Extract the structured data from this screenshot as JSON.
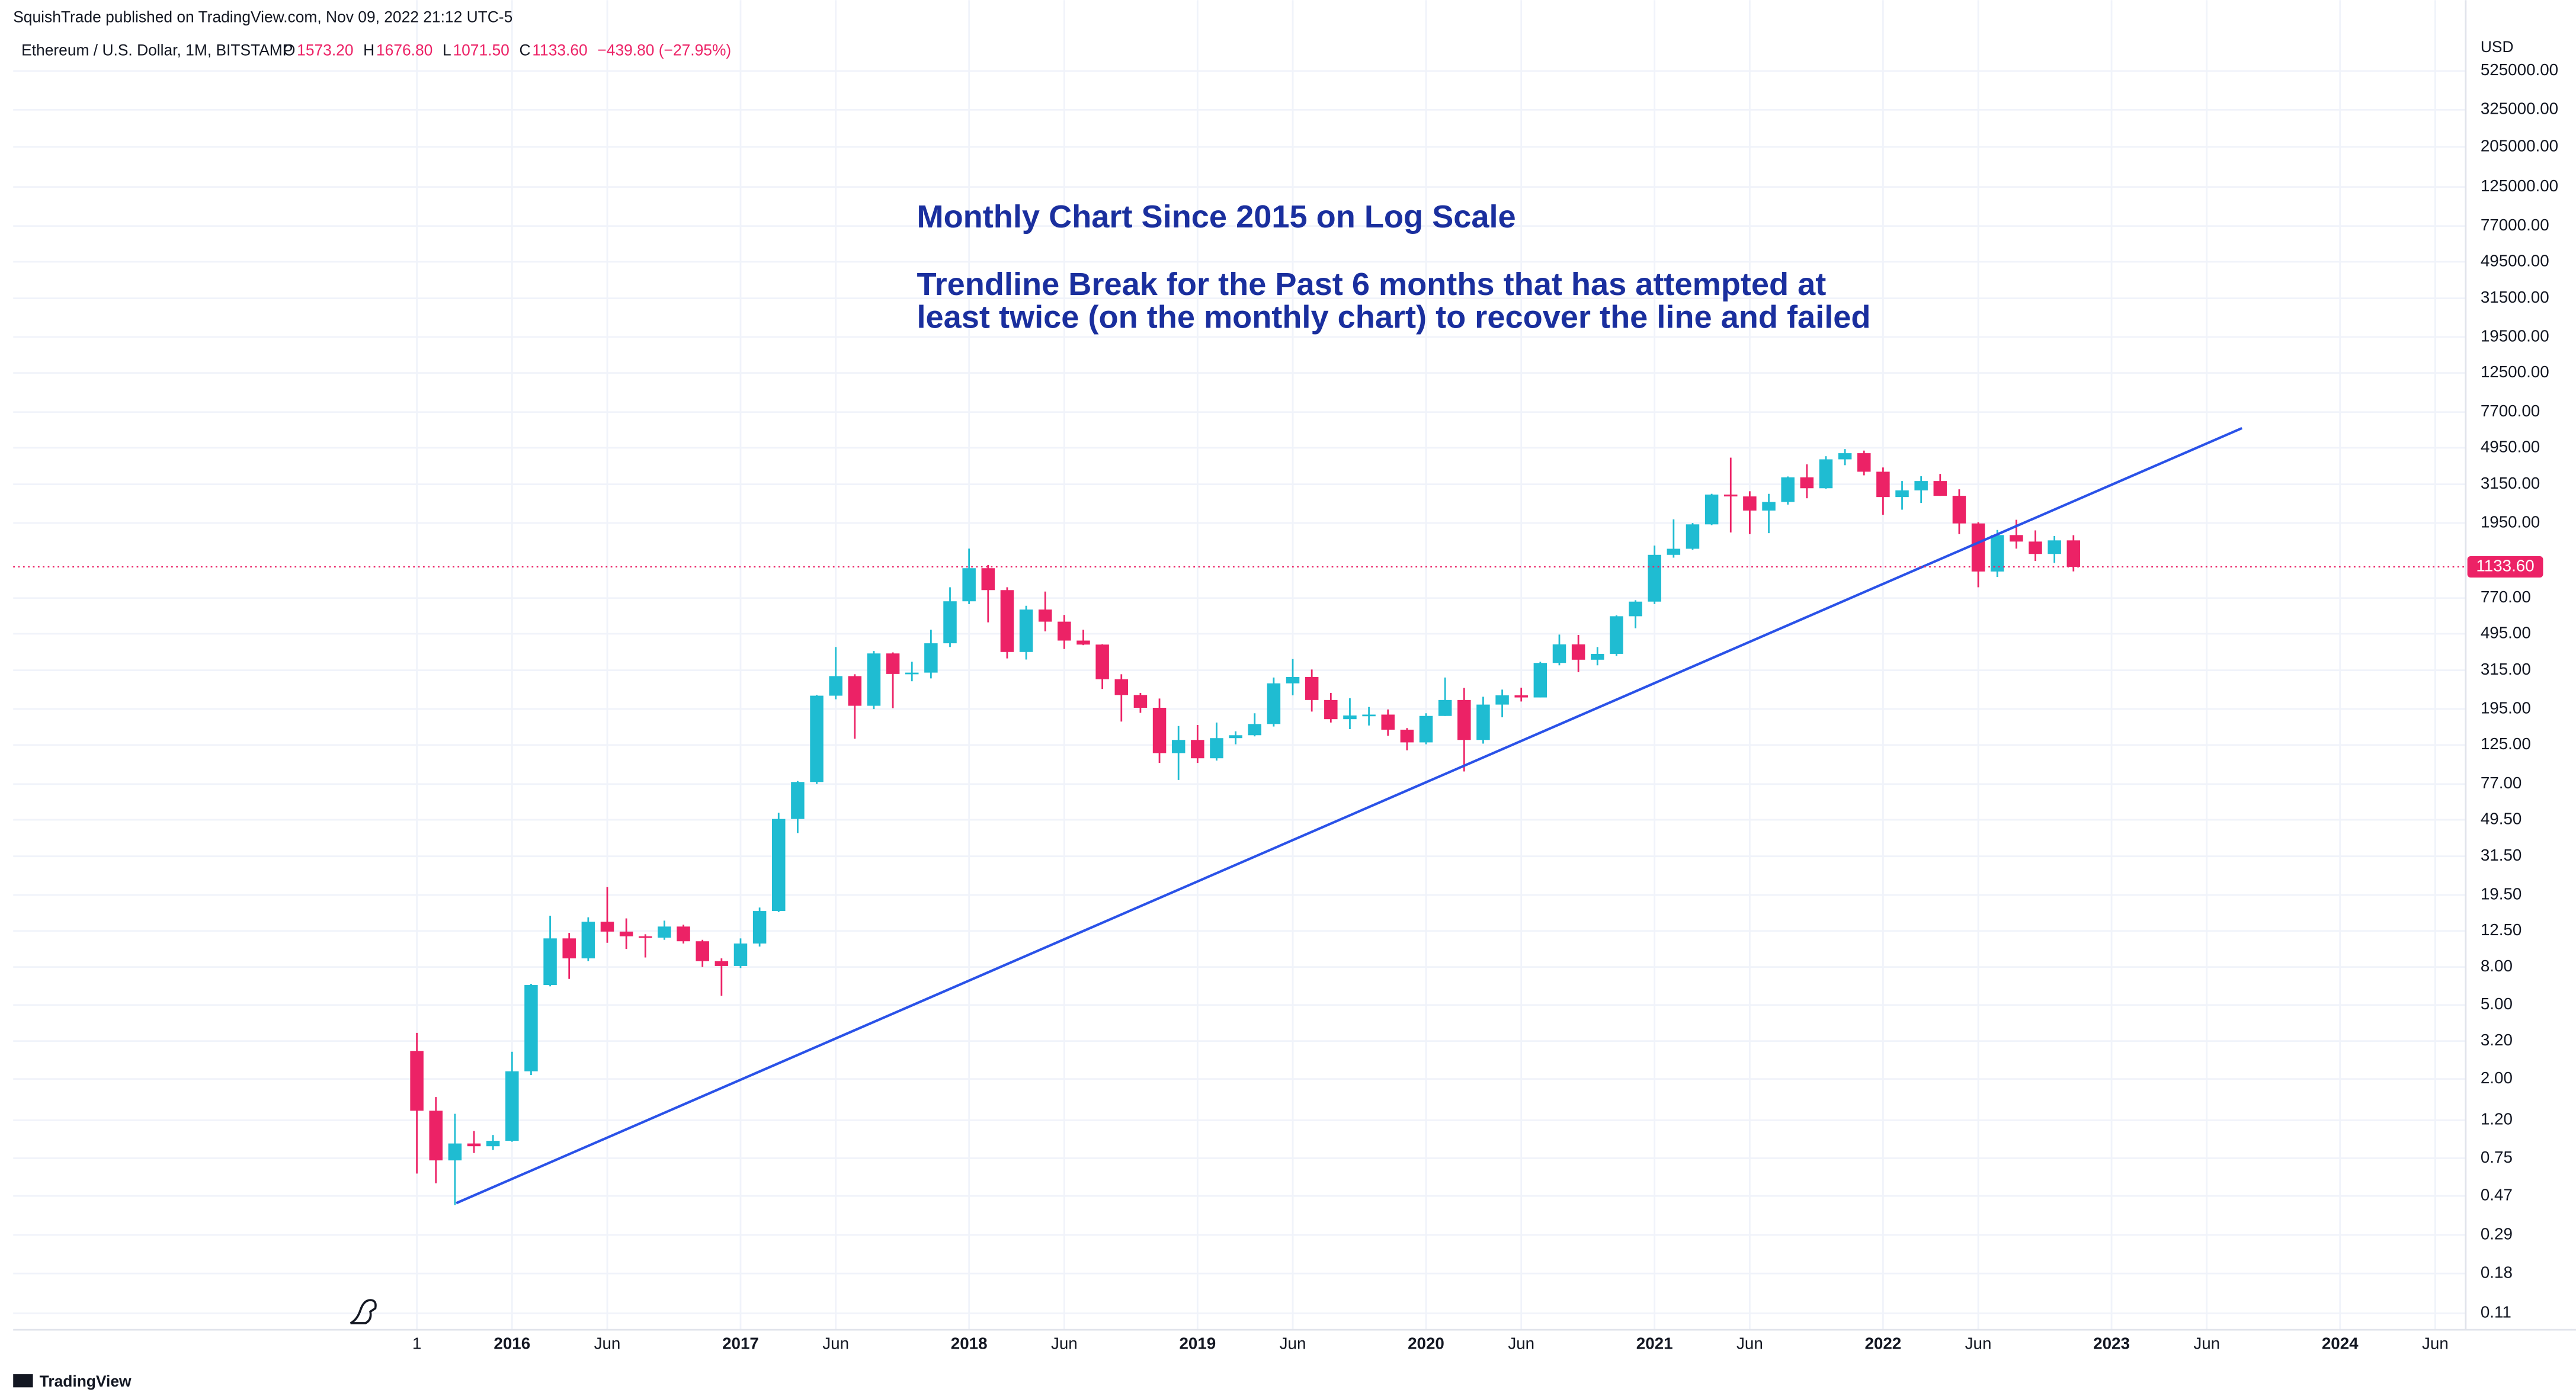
{
  "header": {
    "publisher": "SquishTrade published on TradingView.com, Nov 09, 2022 21:12 UTC-5",
    "footer": "TradingView"
  },
  "chart_data": {
    "type": "candlestick",
    "symbol": "Ethereum / U.S. Dollar, 1M, BITSTAMP",
    "ohlc_legend": [
      {
        "key": "O",
        "value": "1573.20"
      },
      {
        "key": "H",
        "value": "1676.80"
      },
      {
        "key": "L",
        "value": "1071.50"
      },
      {
        "key": "C",
        "value": "1133.60"
      }
    ],
    "change": "−439.80 (−27.95%)",
    "currency": "USD",
    "annotations": [
      "Monthly Chart Since 2015 on Log Scale",
      "Trendline Break for the Past 6 months that has attempted at",
      "least twice (on the monthly chart) to recover the line and failed"
    ],
    "up_color": "#1fbcd2",
    "down_color": "#ec2266",
    "open": [
      2.83,
      1.35,
      0.73,
      0.9,
      0.87,
      0.93,
      2.2,
      6.4,
      11.4,
      8.9,
      14.0,
      12.4,
      11.7,
      11.5,
      13.2,
      11.0,
      8.6,
      8.1,
      10.7,
      16.0,
      50,
      79,
      230,
      293,
      203,
      388,
      301,
      306,
      440,
      740,
      1115,
      850,
      395,
      668,
      575,
      455,
      433,
      282,
      232,
      198,
      113,
      133,
      106,
      136,
      141,
      162,
      268,
      290,
      218,
      172,
      180,
      182,
      151,
      129,
      179,
      218,
      133,
      206,
      231,
      225,
      345,
      434,
      359,
      386,
      615,
      737,
      1315,
      1418,
      1918,
      2773,
      2710,
      2275,
      2530,
      3430,
      3000,
      4290,
      4630,
      3680,
      2690,
      2920,
      3280,
      2730,
      1940,
      1070,
      1680,
      1550,
      1330,
      1573.2
    ],
    "high": [
      3.54,
      1.6,
      1.3,
      1.05,
      1.0,
      2.8,
      6.5,
      15.1,
      12.2,
      14.8,
      21.5,
      14.6,
      12.0,
      14.2,
      13.5,
      11.2,
      8.9,
      11.4,
      16.7,
      54,
      80,
      232,
      420,
      300,
      400,
      393,
      350,
      520,
      880,
      1420,
      1160,
      880,
      700,
      835,
      625,
      520,
      435,
      300,
      238,
      222,
      158,
      160,
      165,
      148,
      185,
      288,
      362,
      318,
      238,
      223,
      200,
      194,
      154,
      185,
      288,
      253,
      227,
      248,
      254,
      350,
      490,
      488,
      420,
      622,
      750,
      1475,
      2040,
      1950,
      2800,
      4380,
      2890,
      2800,
      3470,
      4030,
      4460,
      4870,
      4780,
      3880,
      3280,
      3480,
      3580,
      2960,
      1970,
      1790,
      2030,
      1780,
      1660,
      1676.8
    ],
    "low": [
      0.62,
      0.55,
      0.42,
      0.8,
      0.83,
      0.92,
      2.1,
      6.3,
      6.9,
      8.6,
      10.8,
      10.0,
      9.0,
      11.2,
      10.7,
      8.0,
      5.6,
      7.9,
      10.3,
      15.8,
      42,
      77,
      220,
      135,
      195,
      197,
      275,
      285,
      420,
      715,
      570,
      365,
      360,
      510,
      410,
      430,
      250,
      167,
      186,
      100,
      81,
      100,
      103,
      126,
      139,
      157,
      231,
      189,
      165,
      152,
      159,
      140,
      117,
      126,
      179,
      90,
      127,
      176,
      214,
      225,
      335,
      308,
      335,
      376,
      530,
      715,
      1270,
      1400,
      1900,
      1735,
      1700,
      1720,
      2450,
      2650,
      2980,
      3990,
      3520,
      2160,
      2300,
      2500,
      2730,
      1700,
      880,
      1000,
      1420,
      1220,
      1190,
      1071.5
    ],
    "close": [
      1.35,
      0.73,
      0.9,
      0.87,
      0.93,
      2.2,
      6.4,
      11.4,
      8.9,
      14.0,
      12.4,
      11.7,
      11.5,
      13.2,
      11.0,
      8.6,
      8.1,
      10.7,
      16.0,
      50,
      79,
      230,
      293,
      203,
      388,
      301,
      306,
      440,
      740,
      1115,
      850,
      395,
      668,
      575,
      455,
      433,
      282,
      232,
      198,
      113,
      133,
      106,
      136,
      141,
      162,
      268,
      290,
      218,
      172,
      180,
      182,
      151,
      129,
      179,
      218,
      133,
      206,
      231,
      225,
      345,
      434,
      359,
      386,
      615,
      737,
      1315,
      1418,
      1918,
      2773,
      2710,
      2275,
      2530,
      3430,
      3000,
      4290,
      4630,
      3680,
      2690,
      2920,
      3280,
      2730,
      1940,
      1070,
      1680,
      1550,
      1330,
      1573.2,
      1133.6
    ],
    "xlim": [
      -21.2,
      107.6
    ],
    "xticks": [
      {
        "value": 0,
        "label": "1"
      },
      {
        "value": 5,
        "label": "2016"
      },
      {
        "value": 10,
        "label": "Jun"
      },
      {
        "value": 17,
        "label": "2017"
      },
      {
        "value": 22,
        "label": "Jun"
      },
      {
        "value": 29,
        "label": "2018"
      },
      {
        "value": 34,
        "label": "Jun"
      },
      {
        "value": 41,
        "label": "2019"
      },
      {
        "value": 46,
        "label": "Jun"
      },
      {
        "value": 53,
        "label": "2020"
      },
      {
        "value": 58,
        "label": "Jun"
      },
      {
        "value": 65,
        "label": "2021"
      },
      {
        "value": 70,
        "label": "Jun"
      },
      {
        "value": 77,
        "label": "2022"
      },
      {
        "value": 82,
        "label": "Jun"
      },
      {
        "value": 89,
        "label": "2023"
      },
      {
        "value": 94,
        "label": "Jun"
      },
      {
        "value": 101,
        "label": "2024"
      },
      {
        "value": 106,
        "label": "Jun"
      }
    ],
    "ylim": [
      0.0897,
      840000
    ],
    "log_scale": true,
    "grid": true,
    "yticks": [
      {
        "value": 525000,
        "label": "525000.00"
      },
      {
        "value": 325000,
        "label": "325000.00"
      },
      {
        "value": 205000,
        "label": "205000.00"
      },
      {
        "value": 125000,
        "label": "125000.00"
      },
      {
        "value": 77000,
        "label": "77000.00"
      },
      {
        "value": 49500,
        "label": "49500.00"
      },
      {
        "value": 31500,
        "label": "31500.00"
      },
      {
        "value": 19500,
        "label": "19500.00"
      },
      {
        "value": 12500,
        "label": "12500.00"
      },
      {
        "value": 7700,
        "label": "7700.00"
      },
      {
        "value": 4950,
        "label": "4950.00"
      },
      {
        "value": 3150,
        "label": "3150.00"
      },
      {
        "value": 1950,
        "label": "1950.00"
      },
      {
        "value": 770,
        "label": "770.00"
      },
      {
        "value": 495,
        "label": "495.00"
      },
      {
        "value": 315,
        "label": "315.00"
      },
      {
        "value": 195,
        "label": "195.00"
      },
      {
        "value": 125,
        "label": "125.00"
      },
      {
        "value": 77,
        "label": "77.00"
      },
      {
        "value": 49.5,
        "label": "49.50"
      },
      {
        "value": 31.5,
        "label": "31.50"
      },
      {
        "value": 19.5,
        "label": "19.50"
      },
      {
        "value": 12.5,
        "label": "12.50"
      },
      {
        "value": 8,
        "label": "8.00"
      },
      {
        "value": 5,
        "label": "5.00"
      },
      {
        "value": 3.2,
        "label": "3.20"
      },
      {
        "value": 2,
        "label": "2.00"
      },
      {
        "value": 1.2,
        "label": "1.20"
      },
      {
        "value": 0.75,
        "label": "0.75"
      },
      {
        "value": 0.47,
        "label": "0.47"
      },
      {
        "value": 0.29,
        "label": "0.29"
      },
      {
        "value": 0.18,
        "label": "0.18"
      },
      {
        "value": 0.11,
        "label": "0.11"
      }
    ],
    "last_price": {
      "value": 1133.6,
      "label": "1133.60",
      "color": "#ec2266"
    },
    "trendline": {
      "x": [
        2.07,
        95.85
      ],
      "y": [
        0.43,
        6310
      ],
      "color": "#2a52e8"
    }
  }
}
